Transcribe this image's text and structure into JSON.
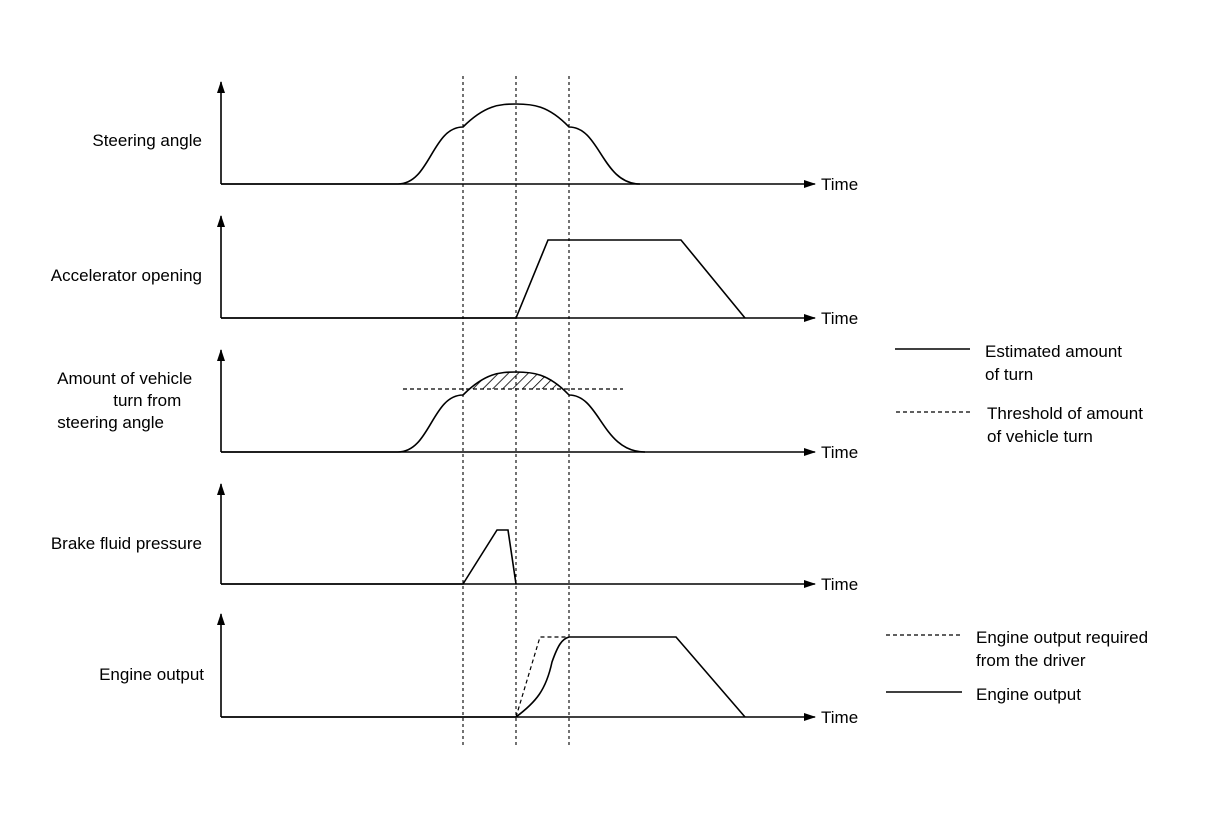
{
  "panels": [
    {
      "id": "steering",
      "label_lines": [
        "Steering angle"
      ],
      "x_label": "Time"
    },
    {
      "id": "accelerator",
      "label_lines": [
        "Accelerator opening"
      ],
      "x_label": "Time"
    },
    {
      "id": "vehicle-turn",
      "label_lines": [
        "Amount of vehicle",
        "turn from",
        "steering angle"
      ],
      "x_label": "Time"
    },
    {
      "id": "brake",
      "label_lines": [
        "Brake fluid pressure"
      ],
      "x_label": "Time"
    },
    {
      "id": "engine",
      "label_lines": [
        "Engine output"
      ],
      "x_label": "Time"
    }
  ],
  "legends": {
    "turn": {
      "estimated": [
        "Estimated amount",
        "of turn"
      ],
      "threshold": [
        "Threshold of amount",
        "of vehicle turn"
      ]
    },
    "engine": {
      "required": [
        "Engine output required",
        "from the driver"
      ],
      "output": [
        "Engine output"
      ]
    }
  }
}
